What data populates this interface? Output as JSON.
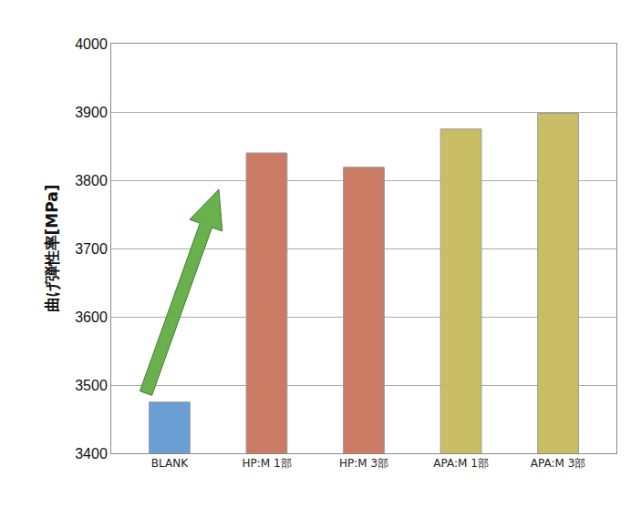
{
  "chart_data": {
    "type": "bar",
    "y_label": "曲げ弾性率[MPa]",
    "categories": [
      "BLANK",
      "HP:M 1部",
      "HP:M 3部",
      "APA:M 1部",
      "APA:M 3部"
    ],
    "values": [
      3475,
      3840,
      3819,
      3875,
      3898
    ],
    "colors": [
      "#6a9fd4",
      "#c97b63",
      "#c97b63",
      "#c9bd66",
      "#c9bd66"
    ],
    "ylim": [
      3400,
      4000
    ],
    "yticks": [
      3400,
      3500,
      3600,
      3700,
      3800,
      3900,
      4000
    ],
    "grid": true
  }
}
